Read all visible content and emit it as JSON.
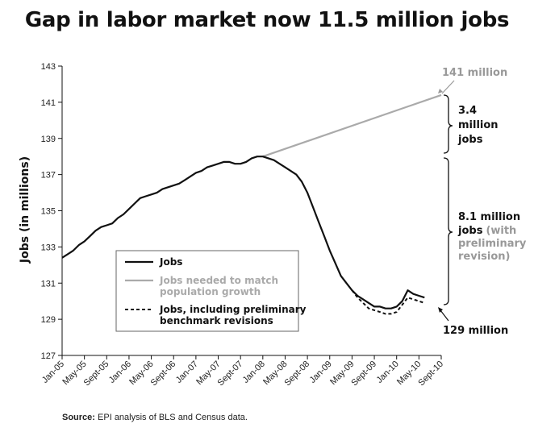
{
  "title": "Gap in labor market now 11.5 million jobs",
  "source": {
    "label": "Source:",
    "text": "EPI analysis of BLS and Census data."
  },
  "colors": {
    "jobs": "#111111",
    "needed": "#aaaaaa",
    "benchmark": "#111111",
    "gray_text": "#999999"
  },
  "annotations": {
    "top_value": "141 million",
    "bottom_value": "129 million",
    "gap1_lines": [
      "3.4",
      "million",
      "jobs"
    ],
    "gap2_line1": "8.1 million",
    "gap2_line2_bold": "jobs",
    "gap2_line2_gray": "(with",
    "gap2_line3_gray": "preliminary",
    "gap2_line4_gray": "revision)"
  },
  "chart_data": {
    "type": "line",
    "title": "Gap in labor market now 11.5 million jobs",
    "xlabel": "",
    "ylabel": "Jobs (in millions)",
    "ylim": [
      127,
      143
    ],
    "yticks": [
      "143",
      "141",
      "139",
      "137",
      "135",
      "133",
      "131",
      "129",
      "127"
    ],
    "xticks": [
      "Jan-05",
      "May-05",
      "Sept-05",
      "Jan-06",
      "May-06",
      "Sept-06",
      "Jan-07",
      "May-07",
      "Sept-07",
      "Jan-08",
      "May-08",
      "Sept-08",
      "Jan-09",
      "May-09",
      "Sept-09",
      "Jan-10",
      "May-10",
      "Sept-10"
    ],
    "legend_position": "lower-left",
    "series": [
      {
        "name": "Jobs",
        "style": "solid",
        "points": [
          [
            0,
            132.4
          ],
          [
            1,
            132.6
          ],
          [
            2,
            132.8
          ],
          [
            3,
            133.1
          ],
          [
            4,
            133.3
          ],
          [
            5,
            133.6
          ],
          [
            6,
            133.9
          ],
          [
            7,
            134.1
          ],
          [
            8,
            134.2
          ],
          [
            9,
            134.3
          ],
          [
            10,
            134.6
          ],
          [
            11,
            134.8
          ],
          [
            12,
            135.1
          ],
          [
            13,
            135.4
          ],
          [
            14,
            135.7
          ],
          [
            15,
            135.8
          ],
          [
            16,
            135.9
          ],
          [
            17,
            136.0
          ],
          [
            18,
            136.2
          ],
          [
            19,
            136.3
          ],
          [
            20,
            136.4
          ],
          [
            21,
            136.5
          ],
          [
            22,
            136.7
          ],
          [
            23,
            136.9
          ],
          [
            24,
            137.1
          ],
          [
            25,
            137.2
          ],
          [
            26,
            137.4
          ],
          [
            27,
            137.5
          ],
          [
            28,
            137.6
          ],
          [
            29,
            137.7
          ],
          [
            30,
            137.7
          ],
          [
            31,
            137.6
          ],
          [
            32,
            137.6
          ],
          [
            33,
            137.7
          ],
          [
            34,
            137.9
          ],
          [
            35,
            138.0
          ],
          [
            36,
            138.0
          ],
          [
            37,
            137.9
          ],
          [
            38,
            137.8
          ],
          [
            39,
            137.6
          ],
          [
            40,
            137.4
          ],
          [
            41,
            137.2
          ],
          [
            42,
            137.0
          ],
          [
            43,
            136.6
          ],
          [
            44,
            136.0
          ],
          [
            45,
            135.2
          ],
          [
            46,
            134.4
          ],
          [
            47,
            133.6
          ],
          [
            48,
            132.8
          ],
          [
            49,
            132.1
          ],
          [
            50,
            131.4
          ],
          [
            51,
            131.0
          ],
          [
            52,
            130.6
          ],
          [
            53,
            130.3
          ],
          [
            54,
            130.1
          ],
          [
            55,
            129.9
          ],
          [
            56,
            129.7
          ],
          [
            57,
            129.7
          ],
          [
            58,
            129.6
          ],
          [
            59,
            129.6
          ],
          [
            60,
            129.7
          ],
          [
            61,
            130.0
          ],
          [
            62,
            130.6
          ],
          [
            63,
            130.4
          ],
          [
            64,
            130.3
          ],
          [
            65,
            130.2
          ]
        ]
      },
      {
        "name": "Jobs needed to match population growth",
        "style": "solid",
        "points": [
          [
            36,
            138.0
          ],
          [
            68,
            141.4
          ]
        ]
      },
      {
        "name": "Jobs, including preliminary benchmark revisions",
        "style": "dashed",
        "points": [
          [
            52,
            130.6
          ],
          [
            53,
            130.2
          ],
          [
            54,
            129.9
          ],
          [
            55,
            129.6
          ],
          [
            56,
            129.5
          ],
          [
            57,
            129.4
          ],
          [
            58,
            129.3
          ],
          [
            59,
            129.3
          ],
          [
            60,
            129.4
          ],
          [
            61,
            129.8
          ],
          [
            62,
            130.2
          ],
          [
            63,
            130.1
          ],
          [
            64,
            130.0
          ],
          [
            65,
            129.9
          ]
        ]
      }
    ]
  }
}
